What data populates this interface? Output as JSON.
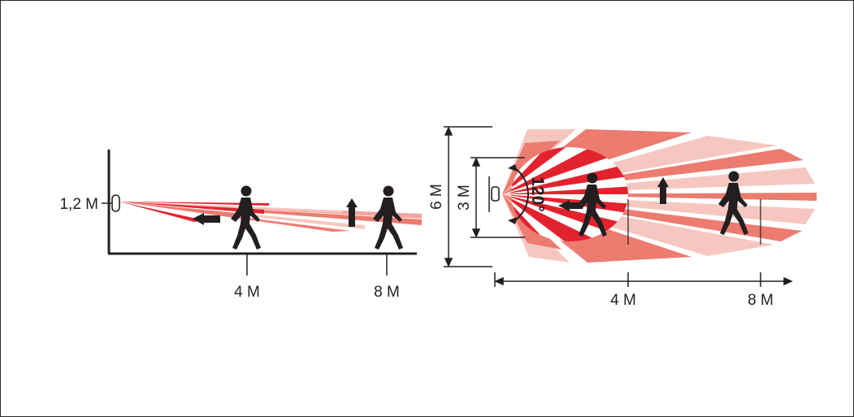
{
  "side_view": {
    "height_label": "1,2 M",
    "distance_near_label": "4 M",
    "distance_far_label": "8 M"
  },
  "top_view": {
    "width_outer_label": "6 M",
    "width_inner_label": "3 M",
    "angle_label": "120°",
    "distance_near_label": "4 M",
    "distance_far_label": "8 M"
  },
  "colors": {
    "beam_dark": "#e2232e",
    "beam_mid": "#ec7b70",
    "beam_light": "#f6c7c0",
    "ink": "#231f20"
  },
  "icons": [
    "sensor-icon",
    "walking-person-icon",
    "arrow-left-icon",
    "arrow-up-icon"
  ]
}
